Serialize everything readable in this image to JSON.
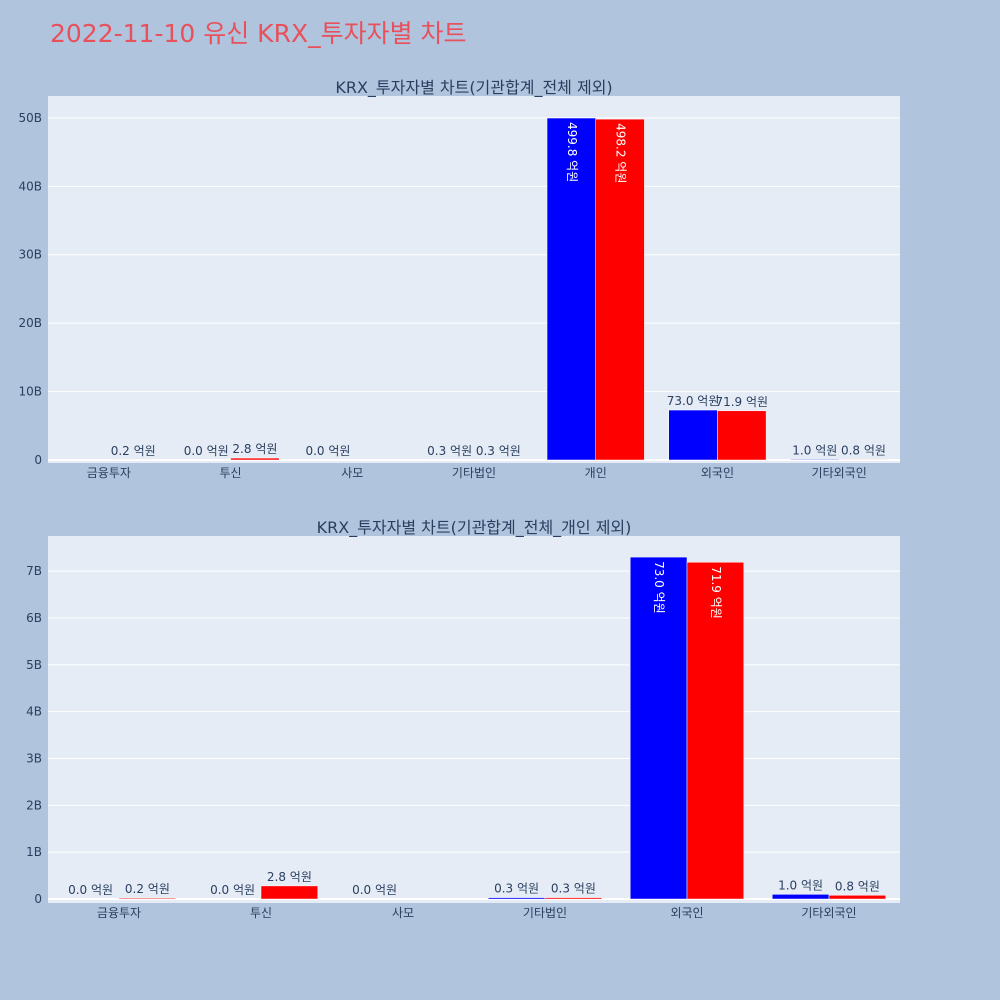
{
  "title": "2022-11-10 유신 KRX_투자자별 차트",
  "chart_data": [
    {
      "type": "bar",
      "title": "KRX_투자자별 차트(기관합계_전체 제외)",
      "categories": [
        "금융투자",
        "투신",
        "사모",
        "기타법인",
        "개인",
        "외국인",
        "기타외국인"
      ],
      "series": [
        {
          "color": "#0000ff",
          "values": [
            0,
            0,
            0,
            30000000,
            49980000000,
            7300000000,
            100000000
          ],
          "value_labels": [
            null,
            "0.0 억원",
            "0.0 억원",
            "0.3 억원",
            "499.8 억원",
            "73.0 억원",
            "1.0 억원"
          ]
        },
        {
          "color": "#ff0000",
          "values": [
            20000000,
            280000000,
            0,
            30000000,
            49820000000,
            7190000000,
            80000000
          ],
          "value_labels": [
            "0.2 억원",
            "2.8 억원",
            null,
            "0.3 억원",
            "498.2 억원",
            "71.9 억원",
            "0.8 억원"
          ]
        }
      ],
      "ylim": [
        -440000000,
        53200000000
      ],
      "yticks": [
        0,
        {
          "value": 10000000000,
          "label": "10B"
        },
        {
          "value": 20000000000,
          "label": "20B"
        },
        {
          "value": 30000000000,
          "label": "30B"
        },
        {
          "value": 40000000000,
          "label": "40B"
        },
        {
          "value": 50000000000,
          "label": "50B"
        }
      ],
      "grid": true
    },
    {
      "type": "bar",
      "title": "KRX_투자자별 차트(기관합계_전체_개인 제외)",
      "categories": [
        "금융투자",
        "투신",
        "사모",
        "기타법인",
        "외국인",
        "기타외국인"
      ],
      "series": [
        {
          "color": "#0000ff",
          "values": [
            0,
            0,
            0,
            30000000,
            7300000000,
            100000000
          ],
          "value_labels": [
            "0.0 억원",
            "0.0 억원",
            "0.0 억원",
            "0.3 억원",
            "73.0 억원",
            "1.0 억원"
          ]
        },
        {
          "color": "#ff0000",
          "values": [
            20000000,
            280000000,
            0,
            30000000,
            7190000000,
            80000000
          ],
          "value_labels": [
            "0.2 억원",
            "2.8 억원",
            null,
            "0.3 억원",
            "71.9 억원",
            "0.8 억원"
          ]
        }
      ],
      "ylim": [
        -85000000,
        7750000000
      ],
      "yticks": [
        0,
        {
          "value": 1000000000,
          "label": "1B"
        },
        {
          "value": 2000000000,
          "label": "2B"
        },
        {
          "value": 3000000000,
          "label": "3B"
        },
        {
          "value": 4000000000,
          "label": "4B"
        },
        {
          "value": 5000000000,
          "label": "5B"
        },
        {
          "value": 6000000000,
          "label": "6B"
        },
        {
          "value": 7000000000,
          "label": "7B"
        }
      ],
      "grid": true
    }
  ]
}
